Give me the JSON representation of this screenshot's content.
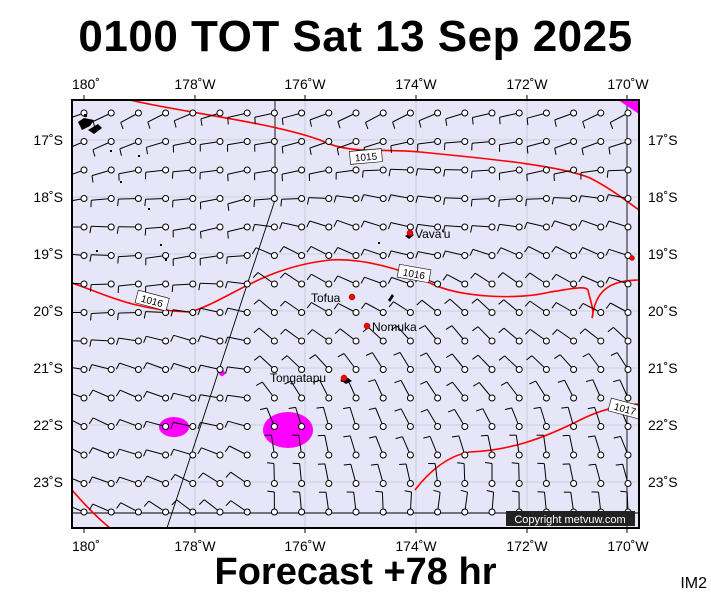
{
  "title": "0100 TOT Sat 13 Sep 2025",
  "footer": "Forecast +78 hr",
  "image_code": "IM2",
  "copyright": "Copyright metvuw.com",
  "lon_labels": [
    "180˚",
    "178˚W",
    "176˚W",
    "174˚W",
    "172˚W",
    "170˚W"
  ],
  "lat_labels": [
    "17˚S",
    "18˚S",
    "19˚S",
    "20˚S",
    "21˚S",
    "22˚S",
    "23˚S"
  ],
  "isobar_labels": [
    "1015",
    "1016",
    "1016",
    "1017"
  ],
  "places": [
    {
      "name": "Vava'u"
    },
    {
      "name": "Tofua"
    },
    {
      "name": "Nomuka"
    },
    {
      "name": "Tongatapu"
    }
  ],
  "colors": {
    "map_background": "#e6e6f8",
    "isobar": "#ff0000",
    "rain": "#ff00ff",
    "place_marker": "#ff0000",
    "wind_barb": "#000000"
  }
}
